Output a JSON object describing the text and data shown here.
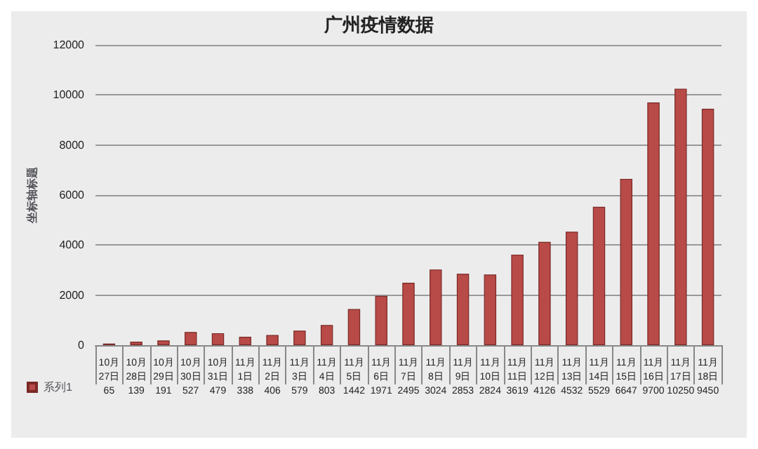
{
  "chart_data": {
    "type": "bar",
    "title": "广州疫情数据",
    "ylabel": "坐标轴标题",
    "categories": [
      "10月\n27日",
      "10月\n28日",
      "10月\n29日",
      "10月\n30日",
      "10月\n31日",
      "11月\n1日",
      "11月\n2日",
      "11月\n3日",
      "11月\n4日",
      "11月\n5日",
      "11月\n6日",
      "11月\n7日",
      "11月\n8日",
      "11月\n9日",
      "11月\n10日",
      "11月\n11日",
      "11月\n12日",
      "11月\n13日",
      "11月\n14日",
      "11月\n15日",
      "11月\n16日",
      "11月\n17日",
      "11月\n18日"
    ],
    "series": [
      {
        "name": "系列1",
        "color": "#b84a47",
        "values": [
          65,
          139,
          191,
          527,
          479,
          338,
          406,
          579,
          803,
          1442,
          1971,
          2495,
          3024,
          2853,
          2824,
          3619,
          4126,
          4532,
          5529,
          6647,
          9700,
          10250,
          9450
        ]
      }
    ],
    "ylim": [
      0,
      12000
    ],
    "yticks": [
      0,
      2000,
      4000,
      6000,
      8000,
      10000,
      12000
    ],
    "grid": "y",
    "legend": "bottom left",
    "data_labels": true
  }
}
